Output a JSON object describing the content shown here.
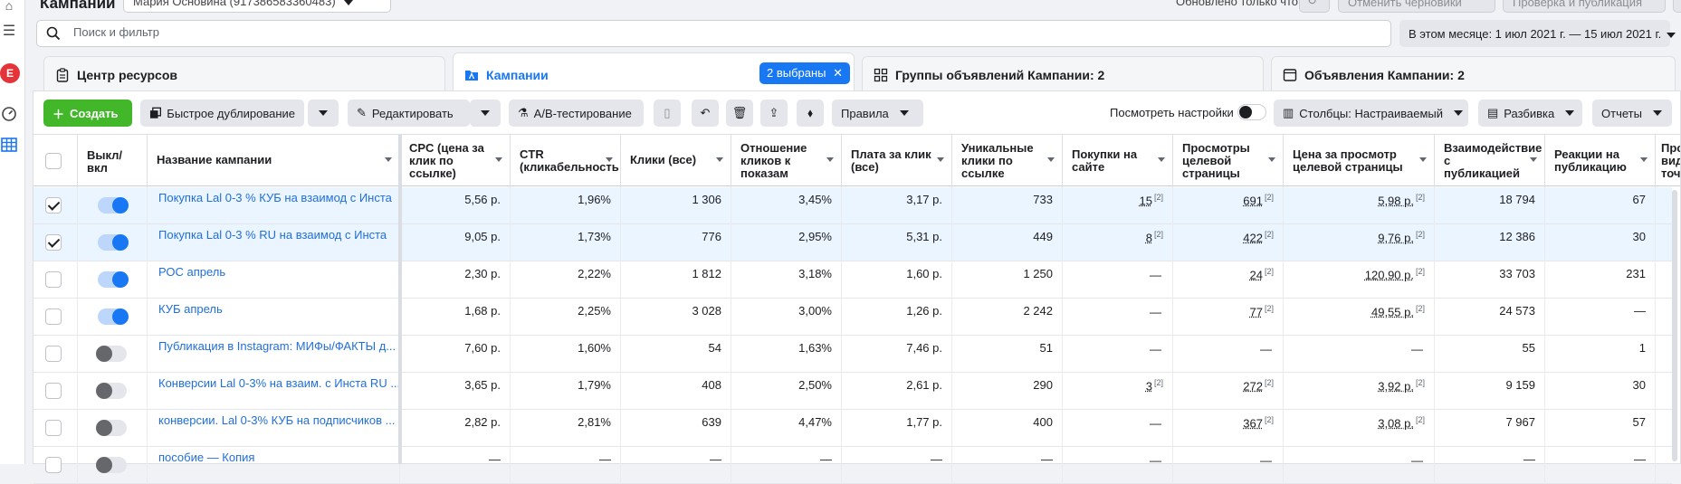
{
  "header": {
    "title": "Кампании",
    "account": "Мария Основина (917386583360483)",
    "updated": "Обновлено только что",
    "discard_label": "Отменить черновики",
    "publish_label": "Проверка и публикация"
  },
  "search": {
    "placeholder": "Поиск и фильтр"
  },
  "date_range": "В этом месяце: 1 июл 2021 г. — 15 июл 2021 г.",
  "avatar_letter": "E",
  "tabs": {
    "resources": "Центр ресурсов",
    "campaigns": "Кампании",
    "selected_chip": "2 выбраны",
    "adsets": "Группы объявлений Кампании: 2",
    "ads": "Объявления Кампании: 2"
  },
  "toolbar": {
    "create": "Создать",
    "duplicate": "Быстрое дублирование",
    "edit": "Редактировать",
    "ab_test": "A/B-тестирование",
    "rules": "Правила",
    "view_settings": "Посмотреть настройки",
    "columns": "Столбцы: Настраиваемый",
    "breakdown": "Разбивка",
    "reports": "Отчеты"
  },
  "columns": {
    "onoff": "Выкл/вкл",
    "name": "Название кампании",
    "cpc": "CPC (цена за клик по ссылке)",
    "ctr": "CTR (кликабельность",
    "clicks": "Клики (все)",
    "ratio": "Отношение кликов к показам",
    "cost_click": "Плата за клик (все)",
    "unique_clicks": "Уникальные клики по ссылке",
    "purchases": "Покупки на сайте",
    "landing_views": "Просмотры целевой страницы",
    "cost_landing": "Цена за просмотр целевой страницы",
    "engagement": "Взаимодействие с публикацией",
    "reactions": "Реакции на публикацию",
    "extra": "Про вид точ"
  },
  "rows": [
    {
      "selected": true,
      "on": true,
      "name": "Покупка Lal 0-3 % КУБ на взаимод с Инста",
      "cpc": "5,56 р.",
      "ctr": "1,96%",
      "clicks": "1 306",
      "ratio": "3,45%",
      "cost_click": "3,17 р.",
      "unique": "733",
      "purchases": "15",
      "purch_fn": "[2]",
      "landing": "691",
      "land_fn": "[2]",
      "cost_landing": "5,98 р.",
      "cl_fn": "[2]",
      "engagement": "18 794",
      "reactions": "67"
    },
    {
      "selected": true,
      "on": true,
      "name": "Покупка Lal 0-3 % RU на взаимод с Инста",
      "cpc": "9,05 р.",
      "ctr": "1,73%",
      "clicks": "776",
      "ratio": "2,95%",
      "cost_click": "5,31 р.",
      "unique": "449",
      "purchases": "8",
      "purch_fn": "[2]",
      "landing": "422",
      "land_fn": "[2]",
      "cost_landing": "9,76 р.",
      "cl_fn": "[2]",
      "engagement": "12 386",
      "reactions": "30"
    },
    {
      "selected": false,
      "on": true,
      "name": "РОС апрель",
      "cpc": "2,30 р.",
      "ctr": "2,22%",
      "clicks": "1 812",
      "ratio": "3,18%",
      "cost_click": "1,60 р.",
      "unique": "1 250",
      "purchases": "—",
      "purch_fn": "",
      "landing": "24",
      "land_fn": "[2]",
      "cost_landing": "120,90 р.",
      "cl_fn": "[2]",
      "engagement": "33 703",
      "reactions": "231"
    },
    {
      "selected": false,
      "on": true,
      "name": "КУБ апрель",
      "cpc": "1,68 р.",
      "ctr": "2,25%",
      "clicks": "3 028",
      "ratio": "3,00%",
      "cost_click": "1,26 р.",
      "unique": "2 242",
      "purchases": "—",
      "purch_fn": "",
      "landing": "77",
      "land_fn": "[2]",
      "cost_landing": "49,55 р.",
      "cl_fn": "[2]",
      "engagement": "24 573",
      "reactions": "—"
    },
    {
      "selected": false,
      "on": false,
      "name": "Публикация в Instagram: МИФы/ФАКТЫ д...",
      "cpc": "7,60 р.",
      "ctr": "1,60%",
      "clicks": "54",
      "ratio": "1,63%",
      "cost_click": "7,46 р.",
      "unique": "51",
      "purchases": "—",
      "purch_fn": "",
      "landing": "—",
      "land_fn": "",
      "cost_landing": "—",
      "cl_fn": "",
      "engagement": "55",
      "reactions": "1"
    },
    {
      "selected": false,
      "on": false,
      "name": "Конверсии Lal 0-3% на взаим. с Инста RU ...",
      "cpc": "3,65 р.",
      "ctr": "1,79%",
      "clicks": "408",
      "ratio": "2,50%",
      "cost_click": "2,61 р.",
      "unique": "290",
      "purchases": "3",
      "purch_fn": "[2]",
      "landing": "272",
      "land_fn": "[2]",
      "cost_landing": "3,92 р.",
      "cl_fn": "[2]",
      "engagement": "9 159",
      "reactions": "30"
    },
    {
      "selected": false,
      "on": false,
      "name": "конверсии. Lal 0-3% КУБ на подписчиков ...",
      "cpc": "2,82 р.",
      "ctr": "2,81%",
      "clicks": "639",
      "ratio": "4,47%",
      "cost_click": "1,77 р.",
      "unique": "400",
      "purchases": "—",
      "purch_fn": "",
      "landing": "367",
      "land_fn": "[2]",
      "cost_landing": "3,08 р.",
      "cl_fn": "[2]",
      "engagement": "7 967",
      "reactions": "57"
    },
    {
      "selected": false,
      "on": false,
      "name": "пособие — Копия",
      "cpc": "—",
      "ctr": "—",
      "clicks": "—",
      "ratio": "—",
      "cost_click": "—",
      "unique": "—",
      "purchases": "—",
      "purch_fn": "",
      "landing": "—",
      "land_fn": "",
      "cost_landing": "—",
      "cl_fn": "",
      "engagement": "—",
      "reactions": "—"
    }
  ]
}
